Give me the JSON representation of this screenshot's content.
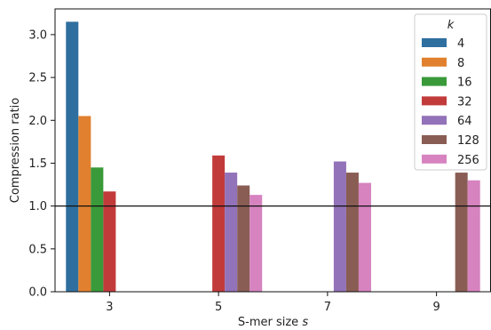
{
  "chart_data": {
    "type": "bar",
    "xlabel_prefix": "S-mer size ",
    "xlabel_var": "s",
    "ylabel": "Compression ratio",
    "categories": [
      "3",
      "5",
      "7",
      "9"
    ],
    "ylim": [
      0,
      3.3
    ],
    "yticks": [
      "0.0",
      "0.5",
      "1.0",
      "1.5",
      "2.0",
      "2.5",
      "3.0"
    ],
    "reference_line": 1.0,
    "legend": {
      "title": "k",
      "placement": "top-right"
    },
    "series": [
      {
        "name": "4",
        "color": "#2f6f9f",
        "values": [
          3.15,
          null,
          null,
          null
        ]
      },
      {
        "name": "8",
        "color": "#e1802e",
        "values": [
          2.05,
          null,
          null,
          null
        ]
      },
      {
        "name": "16",
        "color": "#3a9a3a",
        "values": [
          1.45,
          null,
          null,
          null
        ]
      },
      {
        "name": "32",
        "color": "#c23b3b",
        "values": [
          1.17,
          1.59,
          null,
          null
        ]
      },
      {
        "name": "64",
        "color": "#9272b8",
        "values": [
          null,
          1.39,
          1.52,
          null
        ]
      },
      {
        "name": "128",
        "color": "#8a5d54",
        "values": [
          null,
          1.24,
          1.39,
          1.39
        ]
      },
      {
        "name": "256",
        "color": "#d683c0",
        "values": [
          null,
          1.13,
          1.27,
          1.3
        ]
      }
    ]
  }
}
